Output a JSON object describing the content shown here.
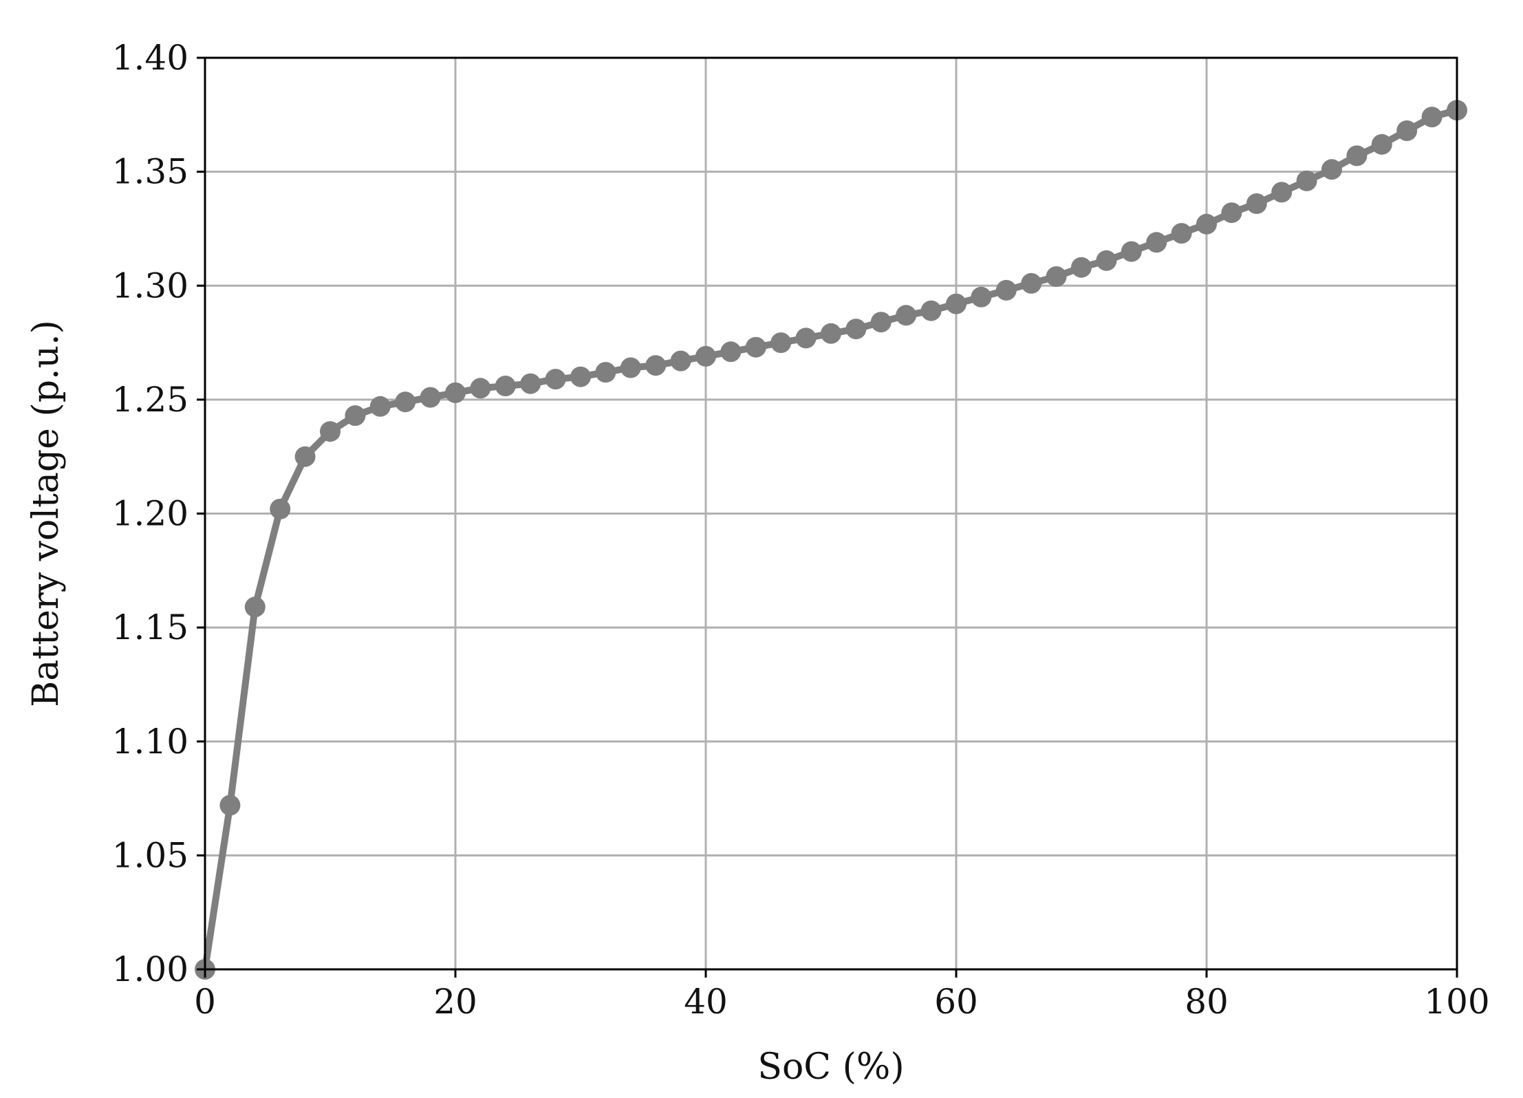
{
  "chart_data": {
    "type": "line",
    "title": "",
    "xlabel": "SoC (%)",
    "ylabel": "Battery voltage (p.u.)",
    "xlim": [
      0,
      100
    ],
    "ylim": [
      1.0,
      1.4
    ],
    "xticks": [
      "0",
      "20",
      "40",
      "60",
      "80",
      "100"
    ],
    "yticks": [
      "1.00",
      "1.05",
      "1.10",
      "1.15",
      "1.20",
      "1.25",
      "1.30",
      "1.35",
      "1.40"
    ],
    "grid": true,
    "legend": "none",
    "series": [
      {
        "color": "#7f7f7f",
        "marker": "circle",
        "x": [
          0,
          2,
          4,
          6,
          8,
          10,
          12,
          14,
          16,
          18,
          20,
          22,
          24,
          26,
          28,
          30,
          32,
          34,
          36,
          38,
          40,
          42,
          44,
          46,
          48,
          50,
          52,
          54,
          56,
          58,
          60,
          62,
          64,
          66,
          68,
          70,
          72,
          74,
          76,
          78,
          80,
          82,
          84,
          86,
          88,
          90,
          92,
          94,
          96,
          98,
          100
        ],
        "y": [
          1.0,
          1.072,
          1.159,
          1.202,
          1.225,
          1.236,
          1.243,
          1.247,
          1.249,
          1.251,
          1.253,
          1.255,
          1.256,
          1.257,
          1.259,
          1.26,
          1.262,
          1.264,
          1.265,
          1.267,
          1.269,
          1.271,
          1.273,
          1.275,
          1.277,
          1.279,
          1.281,
          1.284,
          1.287,
          1.289,
          1.292,
          1.295,
          1.298,
          1.301,
          1.304,
          1.308,
          1.311,
          1.315,
          1.319,
          1.323,
          1.327,
          1.332,
          1.336,
          1.341,
          1.346,
          1.351,
          1.357,
          1.362,
          1.368,
          1.374,
          1.377
        ]
      }
    ]
  }
}
